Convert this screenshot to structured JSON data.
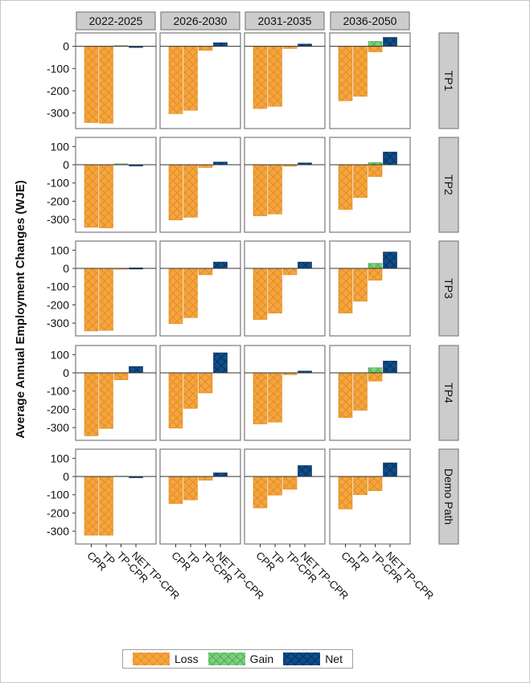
{
  "chart_data": {
    "type": "bar",
    "layout": "facet-grid",
    "ylabel": "Average Annual Employment Changes (WJE)",
    "xlabel": "",
    "column_facets": [
      "2022-2025",
      "2026-2030",
      "2031-2035",
      "2036-2050"
    ],
    "row_facets": [
      "TP1",
      "TP2",
      "TP3",
      "TP4",
      "Demo Path"
    ],
    "categories": [
      "CPR",
      "TP",
      "TP-CPR",
      "NET TP-CPR"
    ],
    "category_kinds": [
      "Loss",
      "Loss",
      "Gain/Loss",
      "Net"
    ],
    "row_ylims": [
      [
        -370,
        60
      ],
      [
        -370,
        150
      ],
      [
        -370,
        150
      ],
      [
        -370,
        150
      ],
      [
        -370,
        150
      ]
    ],
    "row_yticks": [
      [
        0,
        -100,
        -200,
        -300
      ],
      [
        100,
        0,
        -100,
        -200,
        -300
      ],
      [
        100,
        0,
        -100,
        -200,
        -300
      ],
      [
        100,
        0,
        -100,
        -200,
        -300
      ],
      [
        100,
        0,
        -100,
        -200,
        -300
      ]
    ],
    "grid": false,
    "legend_position": "bottom",
    "legend": [
      "Loss",
      "Gain",
      "Net"
    ],
    "colors": {
      "Loss": "#f5a540",
      "Loss_dark": "#e08a1c",
      "Gain": "#7ccf7c",
      "Gain_dark": "#4aa84a",
      "Net": "#0e4d8a",
      "Net_dark": "#062c55",
      "strip_fill": "#cccccc",
      "strip_border": "#808080",
      "panel_border": "#7a7a7a"
    },
    "values": [
      [
        [
          -343,
          -346,
          3,
          -5
        ],
        [
          -303,
          -288,
          -18,
          16
        ],
        [
          -280,
          -270,
          -10,
          10
        ],
        [
          -245,
          -225,
          -25,
          40
        ]
      ],
      [
        [
          -343,
          -346,
          5,
          -5
        ],
        [
          -303,
          -288,
          -15,
          15
        ],
        [
          -280,
          -270,
          -8,
          10
        ],
        [
          -245,
          -180,
          -65,
          70
        ]
      ],
      [
        [
          -343,
          -340,
          -3,
          3
        ],
        [
          -303,
          -270,
          -35,
          35
        ],
        [
          -280,
          -245,
          -35,
          35
        ],
        [
          -245,
          -180,
          -65,
          90
        ]
      ],
      [
        [
          -345,
          -305,
          -38,
          35
        ],
        [
          -303,
          -195,
          -110,
          110
        ],
        [
          -280,
          -270,
          -10,
          10
        ],
        [
          -245,
          -205,
          -45,
          65
        ]
      ],
      [
        [
          -322,
          -322,
          2,
          -2
        ],
        [
          -148,
          -128,
          -20,
          20
        ],
        [
          -172,
          -102,
          -70,
          60
        ],
        [
          -178,
          -100,
          -78,
          75
        ]
      ]
    ],
    "gain_values": [
      [
        [
          0,
          0,
          3,
          0
        ],
        [
          0,
          0,
          0,
          0
        ],
        [
          0,
          0,
          0,
          0
        ],
        [
          0,
          0,
          22,
          0
        ]
      ],
      [
        [
          0,
          0,
          5,
          0
        ],
        [
          0,
          0,
          0,
          0
        ],
        [
          0,
          0,
          0,
          0
        ],
        [
          0,
          0,
          12,
          0
        ]
      ],
      [
        [
          0,
          0,
          0,
          0
        ],
        [
          0,
          0,
          0,
          0
        ],
        [
          0,
          0,
          0,
          0
        ],
        [
          0,
          0,
          28,
          0
        ]
      ],
      [
        [
          0,
          0,
          0,
          0
        ],
        [
          0,
          0,
          0,
          0
        ],
        [
          0,
          0,
          0,
          0
        ],
        [
          0,
          0,
          28,
          0
        ]
      ],
      [
        [
          0,
          0,
          2,
          0
        ],
        [
          0,
          0,
          0,
          0
        ],
        [
          0,
          0,
          0,
          0
        ],
        [
          0,
          0,
          0,
          0
        ]
      ]
    ]
  }
}
